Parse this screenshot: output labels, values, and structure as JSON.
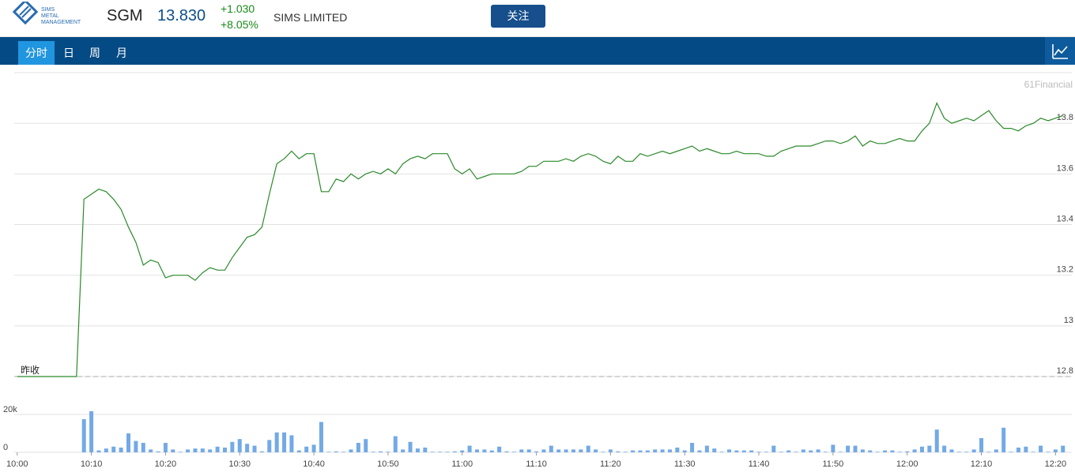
{
  "header": {
    "logo_text": [
      "SIMS",
      "METAL",
      "MANAGEMENT"
    ],
    "symbol": "SGM",
    "price": "13.830",
    "change": "+1.030",
    "change_pct": "+8.05%",
    "name": "SIMS LIMITED",
    "button": "关注"
  },
  "tabs": [
    "分时",
    "日",
    "周",
    "月"
  ],
  "chart_data": [
    {
      "type": "line",
      "watermark": "61Financial",
      "prev_close_label": "昨收",
      "prev_close": 12.8,
      "x": [
        0,
        1,
        2,
        3,
        4,
        5,
        6,
        7,
        8,
        9,
        10,
        11,
        12,
        13,
        14,
        15,
        16,
        17,
        18,
        19,
        20,
        21,
        22,
        23,
        24,
        25,
        26,
        27,
        28,
        29,
        30,
        31,
        32,
        33,
        34,
        35,
        36,
        37,
        38,
        39,
        40,
        41,
        42,
        43,
        44,
        45,
        46,
        47,
        48,
        49,
        50,
        51,
        52,
        53,
        54,
        55,
        56,
        57,
        58,
        59,
        60,
        61,
        62,
        63,
        64,
        65,
        66,
        67,
        68,
        69,
        70,
        71,
        72,
        73,
        74,
        75,
        76,
        77,
        78,
        79,
        80,
        81,
        82,
        83,
        84,
        85,
        86,
        87,
        88,
        89,
        90,
        91,
        92,
        93,
        94,
        95,
        96,
        97,
        98,
        99,
        100,
        101,
        102,
        103,
        104,
        105,
        106,
        107,
        108,
        109,
        110,
        111,
        112,
        113,
        114,
        115,
        116,
        117,
        118,
        119,
        120,
        121,
        122,
        123,
        124,
        125,
        126,
        127,
        128,
        129,
        130,
        131,
        132,
        133,
        134,
        135,
        136,
        137,
        138,
        139,
        140,
        141
      ],
      "series": [
        {
          "color": "#2b8a2b",
          "values": [
            12.8,
            12.8,
            12.8,
            12.8,
            12.8,
            12.8,
            12.8,
            12.8,
            12.8,
            13.5,
            13.52,
            13.54,
            13.53,
            13.5,
            13.46,
            13.39,
            13.33,
            13.24,
            13.26,
            13.25,
            13.19,
            13.2,
            13.2,
            13.2,
            13.18,
            13.21,
            13.23,
            13.22,
            13.22,
            13.27,
            13.31,
            13.35,
            13.36,
            13.39,
            13.52,
            13.64,
            13.66,
            13.69,
            13.66,
            13.68,
            13.68,
            13.53,
            13.53,
            13.58,
            13.57,
            13.6,
            13.58,
            13.6,
            13.61,
            13.6,
            13.62,
            13.6,
            13.64,
            13.66,
            13.67,
            13.66,
            13.68,
            13.68,
            13.68,
            13.62,
            13.6,
            13.62,
            13.58,
            13.59,
            13.6,
            13.6,
            13.6,
            13.6,
            13.61,
            13.63,
            13.63,
            13.65,
            13.65,
            13.65,
            13.66,
            13.65,
            13.67,
            13.68,
            13.67,
            13.65,
            13.64,
            13.67,
            13.65,
            13.65,
            13.68,
            13.67,
            13.68,
            13.69,
            13.68,
            13.69,
            13.7,
            13.71,
            13.69,
            13.7,
            13.69,
            13.68,
            13.68,
            13.69,
            13.68,
            13.68,
            13.68,
            13.67,
            13.67,
            13.69,
            13.7,
            13.71,
            13.71,
            13.71,
            13.72,
            13.73,
            13.73,
            13.72,
            13.73,
            13.75,
            13.71,
            13.73,
            13.72,
            13.72,
            13.73,
            13.74,
            13.73,
            13.73,
            13.77,
            13.8,
            13.88,
            13.82,
            13.8,
            13.81,
            13.82,
            13.81,
            13.83,
            13.85,
            13.81,
            13.78,
            13.78,
            13.77,
            13.79,
            13.8,
            13.82,
            13.81,
            13.82,
            13.83
          ]
        }
      ],
      "xlim": [
        -0.4,
        142.2
      ],
      "ylim": [
        12.8,
        14.0
      ],
      "yticks": [
        12.8,
        13,
        13.2,
        13.4,
        13.6,
        13.8
      ],
      "grid": true
    },
    {
      "type": "bar",
      "x": [
        0,
        1,
        2,
        3,
        4,
        5,
        6,
        7,
        8,
        9,
        10,
        11,
        12,
        13,
        14,
        15,
        16,
        17,
        18,
        19,
        20,
        21,
        22,
        23,
        24,
        25,
        26,
        27,
        28,
        29,
        30,
        31,
        32,
        33,
        34,
        35,
        36,
        37,
        38,
        39,
        40,
        41,
        42,
        43,
        44,
        45,
        46,
        47,
        48,
        49,
        50,
        51,
        52,
        53,
        54,
        55,
        56,
        57,
        58,
        59,
        60,
        61,
        62,
        63,
        64,
        65,
        66,
        67,
        68,
        69,
        70,
        71,
        72,
        73,
        74,
        75,
        76,
        77,
        78,
        79,
        80,
        81,
        82,
        83,
        84,
        85,
        86,
        87,
        88,
        89,
        90,
        91,
        92,
        93,
        94,
        95,
        96,
        97,
        98,
        99,
        100,
        101,
        102,
        103,
        104,
        105,
        106,
        107,
        108,
        109,
        110,
        111,
        112,
        113,
        114,
        115,
        116,
        117,
        118,
        119,
        120,
        121,
        122,
        123,
        124,
        125,
        126,
        127,
        128,
        129,
        130,
        131,
        132,
        133,
        134,
        135,
        136,
        137,
        138,
        139,
        140,
        141
      ],
      "series": [
        {
          "color": "#73a9e6",
          "values": [
            0,
            0,
            0,
            0,
            0,
            0,
            0,
            0,
            0,
            17500,
            21700,
            1000,
            2000,
            3000,
            2500,
            10000,
            6000,
            5000,
            1500,
            500,
            5000,
            1500,
            300,
            1500,
            2000,
            2000,
            1500,
            3000,
            2500,
            5500,
            7000,
            4500,
            3500,
            500,
            6500,
            10500,
            10500,
            9000,
            1000,
            3000,
            4000,
            16000,
            300,
            500,
            300,
            1500,
            5000,
            7000,
            300,
            500,
            300,
            8500,
            1500,
            5500,
            2000,
            2500,
            300,
            300,
            300,
            500,
            1000,
            3500,
            1500,
            1500,
            1000,
            3000,
            500,
            300,
            1500,
            1500,
            500,
            1500,
            3500,
            1500,
            1500,
            1500,
            1500,
            3500,
            1500,
            300,
            1500,
            500,
            300,
            1000,
            1000,
            1000,
            1500,
            1500,
            1500,
            2500,
            1000,
            5000,
            1000,
            3500,
            2000,
            300,
            1500,
            1000,
            1000,
            1000,
            300,
            300,
            3500,
            300,
            1000,
            300,
            1500,
            1000,
            1500,
            300,
            4000,
            300,
            3500,
            3500,
            1500,
            1000,
            300,
            1000,
            1000,
            300,
            500,
            1500,
            3000,
            3500,
            12000,
            3500,
            1500,
            300,
            300,
            1500,
            7500,
            300,
            1500,
            13000,
            300,
            2500,
            3000,
            300,
            3500,
            300,
            1500,
            3500
          ]
        }
      ],
      "xlim": [
        -0.4,
        142.2
      ],
      "ylim": [
        0,
        40000
      ],
      "yticks": [
        0,
        {
          "value": 20000,
          "label": "20k"
        }
      ],
      "grid": true,
      "xticks": [
        {
          "value": 0,
          "label": "10:00"
        },
        {
          "value": 10,
          "label": "10:10"
        },
        {
          "value": 20,
          "label": "10:20"
        },
        {
          "value": 30,
          "label": "10:30"
        },
        {
          "value": 40,
          "label": "10:40"
        },
        {
          "value": 50,
          "label": "10:50"
        },
        {
          "value": 60,
          "label": "11:00"
        },
        {
          "value": 70,
          "label": "11:10"
        },
        {
          "value": 80,
          "label": "11:20"
        },
        {
          "value": 90,
          "label": "11:30"
        },
        {
          "value": 100,
          "label": "11:40"
        },
        {
          "value": 110,
          "label": "11:50"
        },
        {
          "value": 120,
          "label": "12:00"
        },
        {
          "value": 130,
          "label": "12:10"
        },
        {
          "value": 140,
          "label": "12:20"
        }
      ]
    }
  ]
}
